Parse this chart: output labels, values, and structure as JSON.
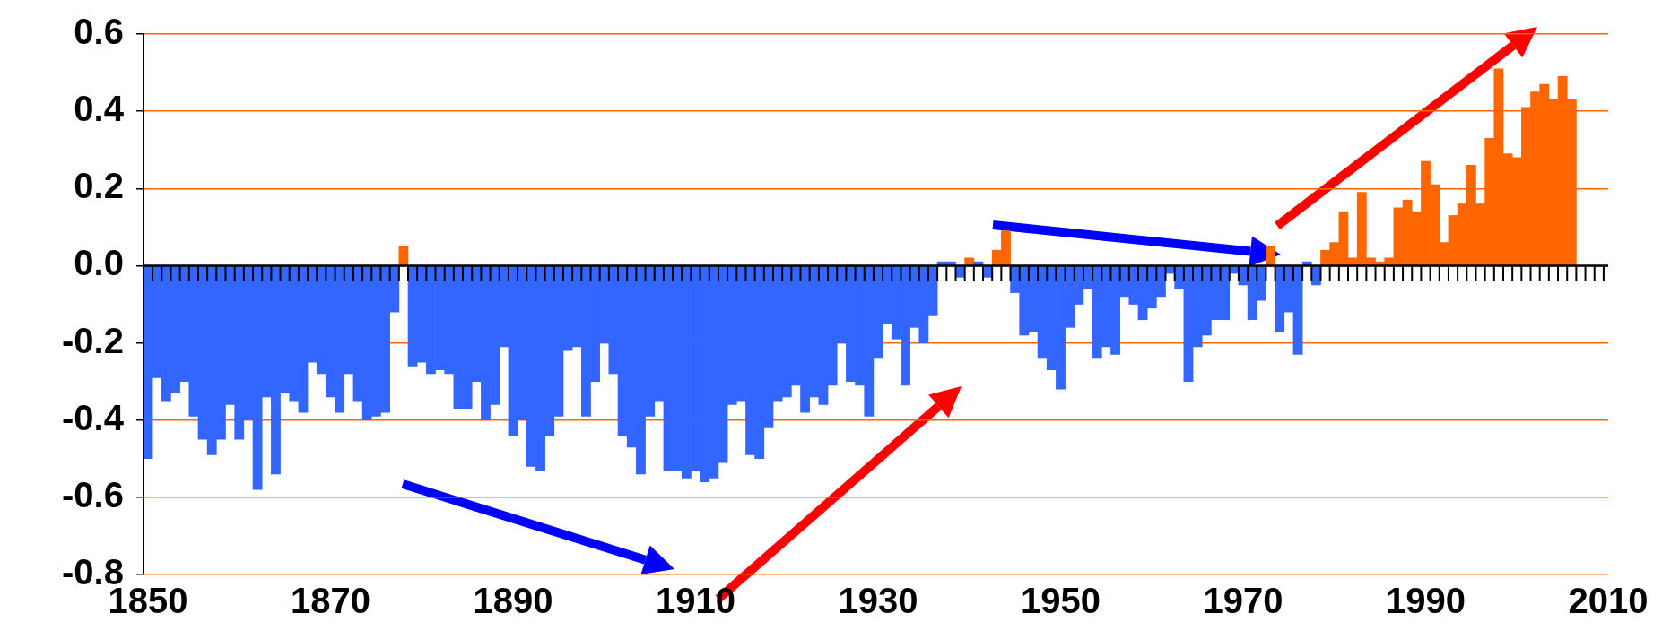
{
  "chart_data": {
    "type": "bar",
    "x": [
      1850,
      1851,
      1852,
      1853,
      1854,
      1855,
      1856,
      1857,
      1858,
      1859,
      1860,
      1861,
      1862,
      1863,
      1864,
      1865,
      1866,
      1867,
      1868,
      1869,
      1870,
      1871,
      1872,
      1873,
      1874,
      1875,
      1876,
      1877,
      1878,
      1879,
      1880,
      1881,
      1882,
      1883,
      1884,
      1885,
      1886,
      1887,
      1888,
      1889,
      1890,
      1891,
      1892,
      1893,
      1894,
      1895,
      1896,
      1897,
      1898,
      1899,
      1900,
      1901,
      1902,
      1903,
      1904,
      1905,
      1906,
      1907,
      1908,
      1909,
      1910,
      1911,
      1912,
      1913,
      1914,
      1915,
      1916,
      1917,
      1918,
      1919,
      1920,
      1921,
      1922,
      1923,
      1924,
      1925,
      1926,
      1927,
      1928,
      1929,
      1930,
      1931,
      1932,
      1933,
      1934,
      1935,
      1936,
      1937,
      1938,
      1939,
      1940,
      1941,
      1942,
      1943,
      1944,
      1945,
      1946,
      1947,
      1948,
      1949,
      1950,
      1951,
      1952,
      1953,
      1954,
      1955,
      1956,
      1957,
      1958,
      1959,
      1960,
      1961,
      1962,
      1963,
      1964,
      1965,
      1966,
      1967,
      1968,
      1969,
      1970,
      1971,
      1972,
      1973,
      1974,
      1975,
      1976,
      1977,
      1978,
      1979,
      1980,
      1981,
      1982,
      1983,
      1984,
      1985,
      1986,
      1987,
      1988,
      1989,
      1990,
      1991,
      1992,
      1993,
      1994,
      1995,
      1996,
      1997,
      1998,
      1999,
      2000,
      2001,
      2002,
      2003,
      2004,
      2005,
      2006
    ],
    "values": [
      -0.5,
      -0.29,
      -0.35,
      -0.33,
      -0.3,
      -0.39,
      -0.45,
      -0.49,
      -0.45,
      -0.36,
      -0.45,
      -0.4,
      -0.58,
      -0.34,
      -0.54,
      -0.33,
      -0.35,
      -0.38,
      -0.25,
      -0.28,
      -0.34,
      -0.38,
      -0.28,
      -0.35,
      -0.4,
      -0.39,
      -0.38,
      -0.12,
      0.05,
      -0.26,
      -0.25,
      -0.28,
      -0.27,
      -0.28,
      -0.37,
      -0.37,
      -0.3,
      -0.4,
      -0.36,
      -0.21,
      -0.44,
      -0.4,
      -0.52,
      -0.53,
      -0.44,
      -0.39,
      -0.22,
      -0.21,
      -0.39,
      -0.3,
      -0.2,
      -0.28,
      -0.44,
      -0.47,
      -0.54,
      -0.39,
      -0.35,
      -0.53,
      -0.53,
      -0.55,
      -0.53,
      -0.56,
      -0.55,
      -0.51,
      -0.36,
      -0.35,
      -0.49,
      -0.5,
      -0.42,
      -0.35,
      -0.34,
      -0.31,
      -0.38,
      -0.34,
      -0.36,
      -0.31,
      -0.2,
      -0.3,
      -0.31,
      -0.39,
      -0.24,
      -0.15,
      -0.19,
      -0.31,
      -0.16,
      -0.2,
      -0.13,
      0.01,
      0.01,
      -0.03,
      0.02,
      0.01,
      -0.03,
      0.04,
      0.09,
      -0.07,
      -0.18,
      -0.17,
      -0.24,
      -0.27,
      -0.32,
      -0.16,
      -0.1,
      -0.06,
      -0.24,
      -0.21,
      -0.23,
      -0.08,
      -0.1,
      -0.14,
      -0.11,
      -0.08,
      -0.02,
      -0.06,
      -0.3,
      -0.21,
      -0.18,
      -0.14,
      -0.14,
      -0.02,
      -0.05,
      -0.14,
      -0.09,
      0.05,
      -0.17,
      -0.12,
      -0.23,
      0.01,
      -0.05,
      0.04,
      0.06,
      0.14,
      0.02,
      0.19,
      0.02,
      0.01,
      0.02,
      0.15,
      0.17,
      0.14,
      0.27,
      0.21,
      0.06,
      0.13,
      0.16,
      0.26,
      0.16,
      0.33,
      0.51,
      0.29,
      0.28,
      0.41,
      0.45,
      0.47,
      0.43,
      0.49,
      0.43
    ],
    "colors": [
      "#3366ff",
      "#3366ff",
      "#3366ff",
      "#3366ff",
      "#3366ff",
      "#3366ff",
      "#3366ff",
      "#3366ff",
      "#3366ff",
      "#3366ff",
      "#3366ff",
      "#3366ff",
      "#3366ff",
      "#3366ff",
      "#3366ff",
      "#3366ff",
      "#3366ff",
      "#3366ff",
      "#3366ff",
      "#3366ff",
      "#3366ff",
      "#3366ff",
      "#3366ff",
      "#3366ff",
      "#3366ff",
      "#3366ff",
      "#3366ff",
      "#3366ff",
      "#ff6600",
      "#3366ff",
      "#3366ff",
      "#3366ff",
      "#3366ff",
      "#3366ff",
      "#3366ff",
      "#3366ff",
      "#3366ff",
      "#3366ff",
      "#3366ff",
      "#3366ff",
      "#3366ff",
      "#3366ff",
      "#3366ff",
      "#3366ff",
      "#3366ff",
      "#3366ff",
      "#3366ff",
      "#3366ff",
      "#3366ff",
      "#3366ff",
      "#3366ff",
      "#3366ff",
      "#3366ff",
      "#3366ff",
      "#3366ff",
      "#3366ff",
      "#3366ff",
      "#3366ff",
      "#3366ff",
      "#3366ff",
      "#3366ff",
      "#3366ff",
      "#3366ff",
      "#3366ff",
      "#3366ff",
      "#3366ff",
      "#3366ff",
      "#3366ff",
      "#3366ff",
      "#3366ff",
      "#3366ff",
      "#3366ff",
      "#3366ff",
      "#3366ff",
      "#3366ff",
      "#3366ff",
      "#3366ff",
      "#3366ff",
      "#3366ff",
      "#3366ff",
      "#3366ff",
      "#3366ff",
      "#3366ff",
      "#3366ff",
      "#3366ff",
      "#3366ff",
      "#3366ff",
      "#3366ff",
      "#3366ff",
      "#3366ff",
      "#ff6600",
      "#3366ff",
      "#3366ff",
      "#ff6600",
      "#ff6600",
      "#3366ff",
      "#3366ff",
      "#3366ff",
      "#3366ff",
      "#3366ff",
      "#3366ff",
      "#3366ff",
      "#3366ff",
      "#3366ff",
      "#3366ff",
      "#3366ff",
      "#3366ff",
      "#3366ff",
      "#3366ff",
      "#3366ff",
      "#3366ff",
      "#3366ff",
      "#3366ff",
      "#3366ff",
      "#3366ff",
      "#3366ff",
      "#3366ff",
      "#3366ff",
      "#3366ff",
      "#3366ff",
      "#3366ff",
      "#3366ff",
      "#3366ff",
      "#ff6600",
      "#3366ff",
      "#3366ff",
      "#3366ff",
      "#3366ff",
      "#3366ff",
      "#ff6600",
      "#ff6600",
      "#ff6600",
      "#ff6600",
      "#ff6600",
      "#ff6600",
      "#ff6600",
      "#ff6600",
      "#ff6600",
      "#ff6600",
      "#ff6600",
      "#ff6600",
      "#ff6600",
      "#ff6600",
      "#ff6600",
      "#ff6600",
      "#ff6600",
      "#ff6600",
      "#ff6600",
      "#ff6600",
      "#ff6600",
      "#ff6600",
      "#ff6600",
      "#ff6600",
      "#ff6600",
      "#ff6600",
      "#ff6600",
      "#ff6600"
    ],
    "xlim": [
      1849.5,
      2010
    ],
    "xticks": [
      1850,
      1870,
      1890,
      1910,
      1930,
      1950,
      1970,
      1990,
      2010
    ],
    "ylim": [
      -0.8,
      0.6
    ],
    "yticks": [
      -0.8,
      -0.6,
      -0.4,
      -0.2,
      {
        "value": 0,
        "label": "0.0"
      },
      0.2,
      0.4,
      0.6
    ],
    "grid": "y",
    "legend": false,
    "ref_lines": [
      {
        "axis": "y",
        "value": 0,
        "color": "#000000"
      }
    ]
  }
}
